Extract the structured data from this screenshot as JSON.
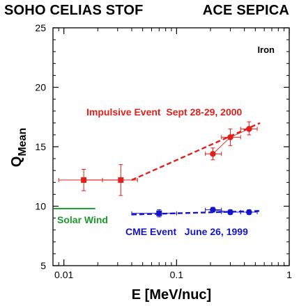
{
  "header": {
    "left": "SOHO CELIAS STOF",
    "right": "ACE SEPICA"
  },
  "chart_data": {
    "type": "scatter",
    "title": "",
    "xlabel": "E [MeV/nuc]",
    "ylabel": "Q",
    "ylabel_subscript": "Mean",
    "x_scale": "log",
    "xlim": [
      0.008,
      1
    ],
    "ylim": [
      5,
      25
    ],
    "x_ticks": [
      0.01,
      0.1,
      1
    ],
    "x_tick_labels": [
      "0.01",
      "0.1",
      "1"
    ],
    "y_ticks": [
      5,
      10,
      15,
      20,
      25
    ],
    "y_tick_labels": [
      "5",
      "10",
      "15",
      "20",
      "25"
    ],
    "grid": false,
    "element_label": "Iron",
    "series": [
      {
        "name": "Impulsive Event  Sept 28-29, 2000",
        "color": "#e0201b",
        "fit_line": {
          "x": [
            0.04,
            0.55
          ],
          "y": [
            12.2,
            17.0
          ],
          "color": "#e0201b"
        },
        "points": [
          {
            "x": 0.015,
            "y": 12.2,
            "xerr": [
              0.009,
              0.022
            ],
            "yerr": [
              11.3,
              13.1
            ],
            "marker": "square"
          },
          {
            "x": 0.032,
            "y": 12.2,
            "xerr": [
              0.022,
              0.045
            ],
            "yerr": [
              10.9,
              13.5
            ],
            "marker": "square"
          },
          {
            "x": 0.21,
            "y": 14.4,
            "xerr": [
              0.18,
              0.25
            ],
            "yerr": [
              13.9,
              14.9
            ],
            "marker": "circle"
          },
          {
            "x": 0.3,
            "y": 15.8,
            "xerr": [
              0.25,
              0.37
            ],
            "yerr": [
              15.1,
              16.5
            ],
            "marker": "circle"
          },
          {
            "x": 0.44,
            "y": 16.5,
            "xerr": [
              0.37,
              0.52
            ],
            "yerr": [
              16.0,
              17.1
            ],
            "marker": "circle"
          }
        ]
      },
      {
        "name": "CME Event   June 26, 1999",
        "color": "#1414c8",
        "fit_line": {
          "x": [
            0.04,
            0.55
          ],
          "y": [
            9.3,
            9.6
          ],
          "color": "#1414c8"
        },
        "points": [
          {
            "x": 0.07,
            "y": 9.4,
            "xerr": [
              0.04,
              0.1
            ],
            "yerr": [
              9.1,
              9.7
            ],
            "marker": "square"
          },
          {
            "x": 0.21,
            "y": 9.7,
            "xerr": [
              0.18,
              0.25
            ],
            "yerr": [
              9.5,
              9.9
            ],
            "marker": "circle"
          },
          {
            "x": 0.3,
            "y": 9.5,
            "xerr": [
              0.25,
              0.37
            ],
            "yerr": [
              9.3,
              9.7
            ],
            "marker": "circle"
          },
          {
            "x": 0.44,
            "y": 9.5,
            "xerr": [
              0.37,
              0.52
            ],
            "yerr": [
              9.3,
              9.7
            ],
            "marker": "circle"
          }
        ]
      }
    ],
    "reference_lines": [
      {
        "name": "Solar Wind",
        "x": [
          0.008,
          0.019
        ],
        "y": 9.8,
        "color": "#1a9a2a"
      }
    ]
  }
}
